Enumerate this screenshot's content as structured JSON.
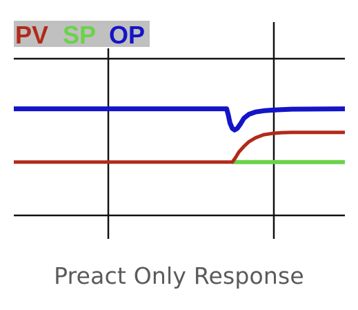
{
  "chart_data": {
    "type": "line",
    "caption": "Preact Only Response",
    "legend": [
      {
        "label": "PV",
        "color": "#b22a1a"
      },
      {
        "label": "SP",
        "color": "#6bd24a"
      },
      {
        "label": "OP",
        "color": "#1414c8"
      }
    ],
    "xlim": [
      0,
      100
    ],
    "ylim": [
      0,
      100
    ],
    "grid": true,
    "series": [
      {
        "name": "OP",
        "color": "#1414c8",
        "x": [
          0,
          64.3,
          64.8,
          65.3,
          66.0,
          66.7,
          67.5,
          68.5,
          69.5,
          71.0,
          73.0,
          75.5,
          78.0,
          81.0,
          84.0,
          100
        ],
        "y": [
          68,
          68,
          64,
          59,
          55.5,
          54.5,
          55.5,
          58.5,
          62,
          64.5,
          66,
          66.8,
          67.2,
          67.5,
          67.8,
          68
        ]
      },
      {
        "name": "SP",
        "color": "#6bd24a",
        "x": [
          66,
          100
        ],
        "y": [
          34,
          34
        ]
      },
      {
        "name": "PV",
        "color": "#b22a1a",
        "x": [
          0,
          66,
          67,
          68,
          69.5,
          71,
          73,
          75.5,
          78,
          81,
          84,
          100
        ],
        "y": [
          34,
          34,
          37,
          40.5,
          44,
          47,
          49.5,
          51.5,
          52.3,
          52.8,
          53,
          53
        ]
      }
    ]
  }
}
